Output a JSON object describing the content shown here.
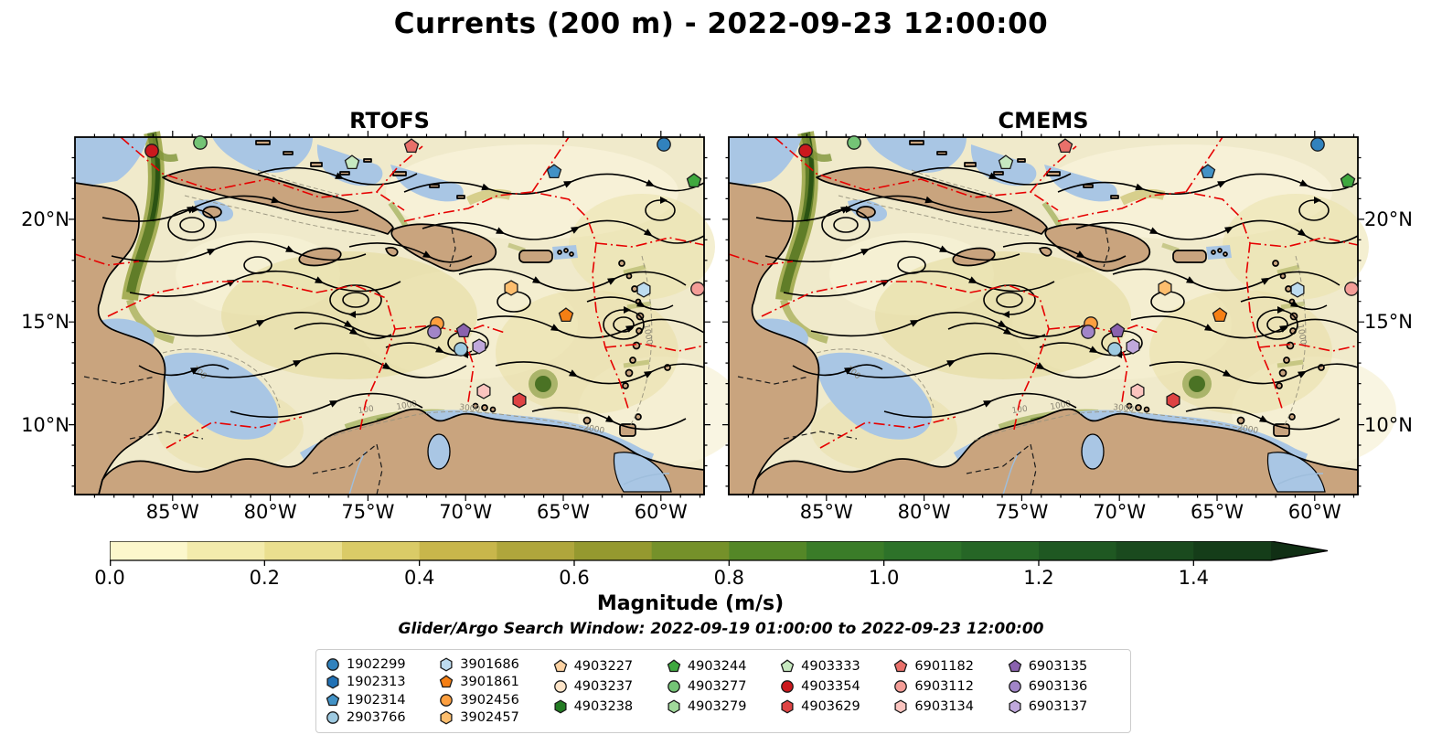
{
  "title": "Currents (200 m) - 2022-09-23 12:00:00",
  "panels": [
    {
      "title": "RTOFS"
    },
    {
      "title": "CMEMS"
    }
  ],
  "axes": {
    "x_ticks": [
      "85°W",
      "80°W",
      "75°W",
      "70°W",
      "65°W",
      "60°W"
    ],
    "y_ticks": [
      "20°N",
      "15°N",
      "10°N"
    ]
  },
  "colorbar": {
    "label": "Magnitude (m/s)",
    "ticks": [
      "0.0",
      "0.2",
      "0.4",
      "0.6",
      "0.8",
      "1.0",
      "1.2",
      "1.4"
    ],
    "range": [
      0.0,
      1.5
    ],
    "extend": "max",
    "segment_colors": [
      "#FCF7CC",
      "#F3EBAC",
      "#EADF8F",
      "#DACB67",
      "#C8B64B",
      "#AFA63C",
      "#95992F",
      "#75912A",
      "#548727",
      "#3A7C28",
      "#2D7229",
      "#266626",
      "#1F5822",
      "#1A4A1E",
      "#153D19"
    ],
    "arrow_color": "#102F14"
  },
  "search_window": "Glider/Argo Search Window: 2022-09-19 01:00:00 to 2022-09-23 12:00:00",
  "map": {
    "ocean_color": "#F0EACB",
    "land_color": "#C9A47E",
    "shallow_color": "#A9C6E4",
    "streamline_color": "#000000",
    "eez_line_color": "#E60000",
    "bathy_labels": [
      "100",
      "1000",
      "3000",
      "2000",
      "100",
      "1000"
    ]
  },
  "legend": {
    "columns": [
      [
        {
          "id": "1902299",
          "shape": "circle",
          "color": "#3182BD"
        },
        {
          "id": "1902313",
          "shape": "hexagon",
          "color": "#2171B5"
        },
        {
          "id": "1902314",
          "shape": "pentagon",
          "color": "#4292C6"
        },
        {
          "id": "2903766",
          "shape": "circle",
          "color": "#9ECAE1"
        }
      ],
      [
        {
          "id": "3901686",
          "shape": "hexagon",
          "color": "#BDDCF0"
        },
        {
          "id": "3901861",
          "shape": "pentagon",
          "color": "#F57F14"
        },
        {
          "id": "3902456",
          "shape": "circle",
          "color": "#FD9F3F"
        },
        {
          "id": "3902457",
          "shape": "hexagon",
          "color": "#FDBE6E"
        }
      ],
      [
        {
          "id": "4903227",
          "shape": "pentagon",
          "color": "#FDD2A2"
        },
        {
          "id": "4903237",
          "shape": "circle",
          "color": "#FDE4C8"
        },
        {
          "id": "4903238",
          "shape": "hexagon",
          "color": "#237B23"
        }
      ],
      [
        {
          "id": "4903244",
          "shape": "pentagon",
          "color": "#3FA83F"
        },
        {
          "id": "4903277",
          "shape": "circle",
          "color": "#74C476"
        },
        {
          "id": "4903279",
          "shape": "hexagon",
          "color": "#A1D99B"
        }
      ],
      [
        {
          "id": "4903333",
          "shape": "pentagon",
          "color": "#C7E9C0"
        },
        {
          "id": "4903354",
          "shape": "circle",
          "color": "#CB181D"
        },
        {
          "id": "4903629",
          "shape": "hexagon",
          "color": "#DE4343"
        }
      ],
      [
        {
          "id": "6901182",
          "shape": "pentagon",
          "color": "#E9706A"
        },
        {
          "id": "6903112",
          "shape": "circle",
          "color": "#F49D97"
        },
        {
          "id": "6903134",
          "shape": "hexagon",
          "color": "#FBC4BF"
        }
      ],
      [
        {
          "id": "6903135",
          "shape": "pentagon",
          "color": "#8A62AE"
        },
        {
          "id": "6903136",
          "shape": "circle",
          "color": "#A185C8"
        },
        {
          "id": "6903137",
          "shape": "hexagon",
          "color": "#C0A8DC"
        }
      ]
    ]
  },
  "map_markers": [
    {
      "id": "4903354",
      "shape": "circle",
      "color": "#CB181D",
      "x": 84,
      "y": 15
    },
    {
      "id": "4903277",
      "shape": "circle",
      "color": "#74C476",
      "x": 137,
      "y": 6
    },
    {
      "id": "4903333",
      "shape": "pentagon",
      "color": "#C7E9C0",
      "x": 303,
      "y": 28
    },
    {
      "id": "6901182",
      "shape": "pentagon",
      "color": "#E9706A",
      "x": 368,
      "y": 10
    },
    {
      "id": "1902314",
      "shape": "pentagon",
      "color": "#4292C6",
      "x": 524,
      "y": 38
    },
    {
      "id": "1902299",
      "shape": "circle",
      "color": "#3182BD",
      "x": 644,
      "y": 8
    },
    {
      "id": "4903244",
      "shape": "pentagon",
      "color": "#3FA83F",
      "x": 677,
      "y": 48
    },
    {
      "id": "3902457",
      "shape": "hexagon",
      "color": "#FDBE6E",
      "x": 477,
      "y": 165
    },
    {
      "id": "3901686",
      "shape": "hexagon",
      "color": "#BDDCF0",
      "x": 622,
      "y": 167
    },
    {
      "id": "6903112",
      "shape": "circle",
      "color": "#F49D97",
      "x": 681,
      "y": 166
    },
    {
      "id": "3901861",
      "shape": "pentagon",
      "color": "#F57F14",
      "x": 537,
      "y": 195
    },
    {
      "id": "3902456",
      "shape": "circle",
      "color": "#FD9F3F",
      "x": 396,
      "y": 204
    },
    {
      "id": "6903136",
      "shape": "circle",
      "color": "#A185C8",
      "x": 393,
      "y": 213
    },
    {
      "id": "6903135",
      "shape": "pentagon",
      "color": "#8A62AE",
      "x": 425,
      "y": 212
    },
    {
      "id": "2903766",
      "shape": "circle",
      "color": "#9ECAE1",
      "x": 422,
      "y": 232
    },
    {
      "id": "6903137",
      "shape": "hexagon",
      "color": "#C0A8DC",
      "x": 442,
      "y": 229
    },
    {
      "id": "6903134",
      "shape": "hexagon",
      "color": "#FBC4BF",
      "x": 447,
      "y": 278
    },
    {
      "id": "4903629",
      "shape": "hexagon",
      "color": "#DE4343",
      "x": 486,
      "y": 288
    }
  ]
}
